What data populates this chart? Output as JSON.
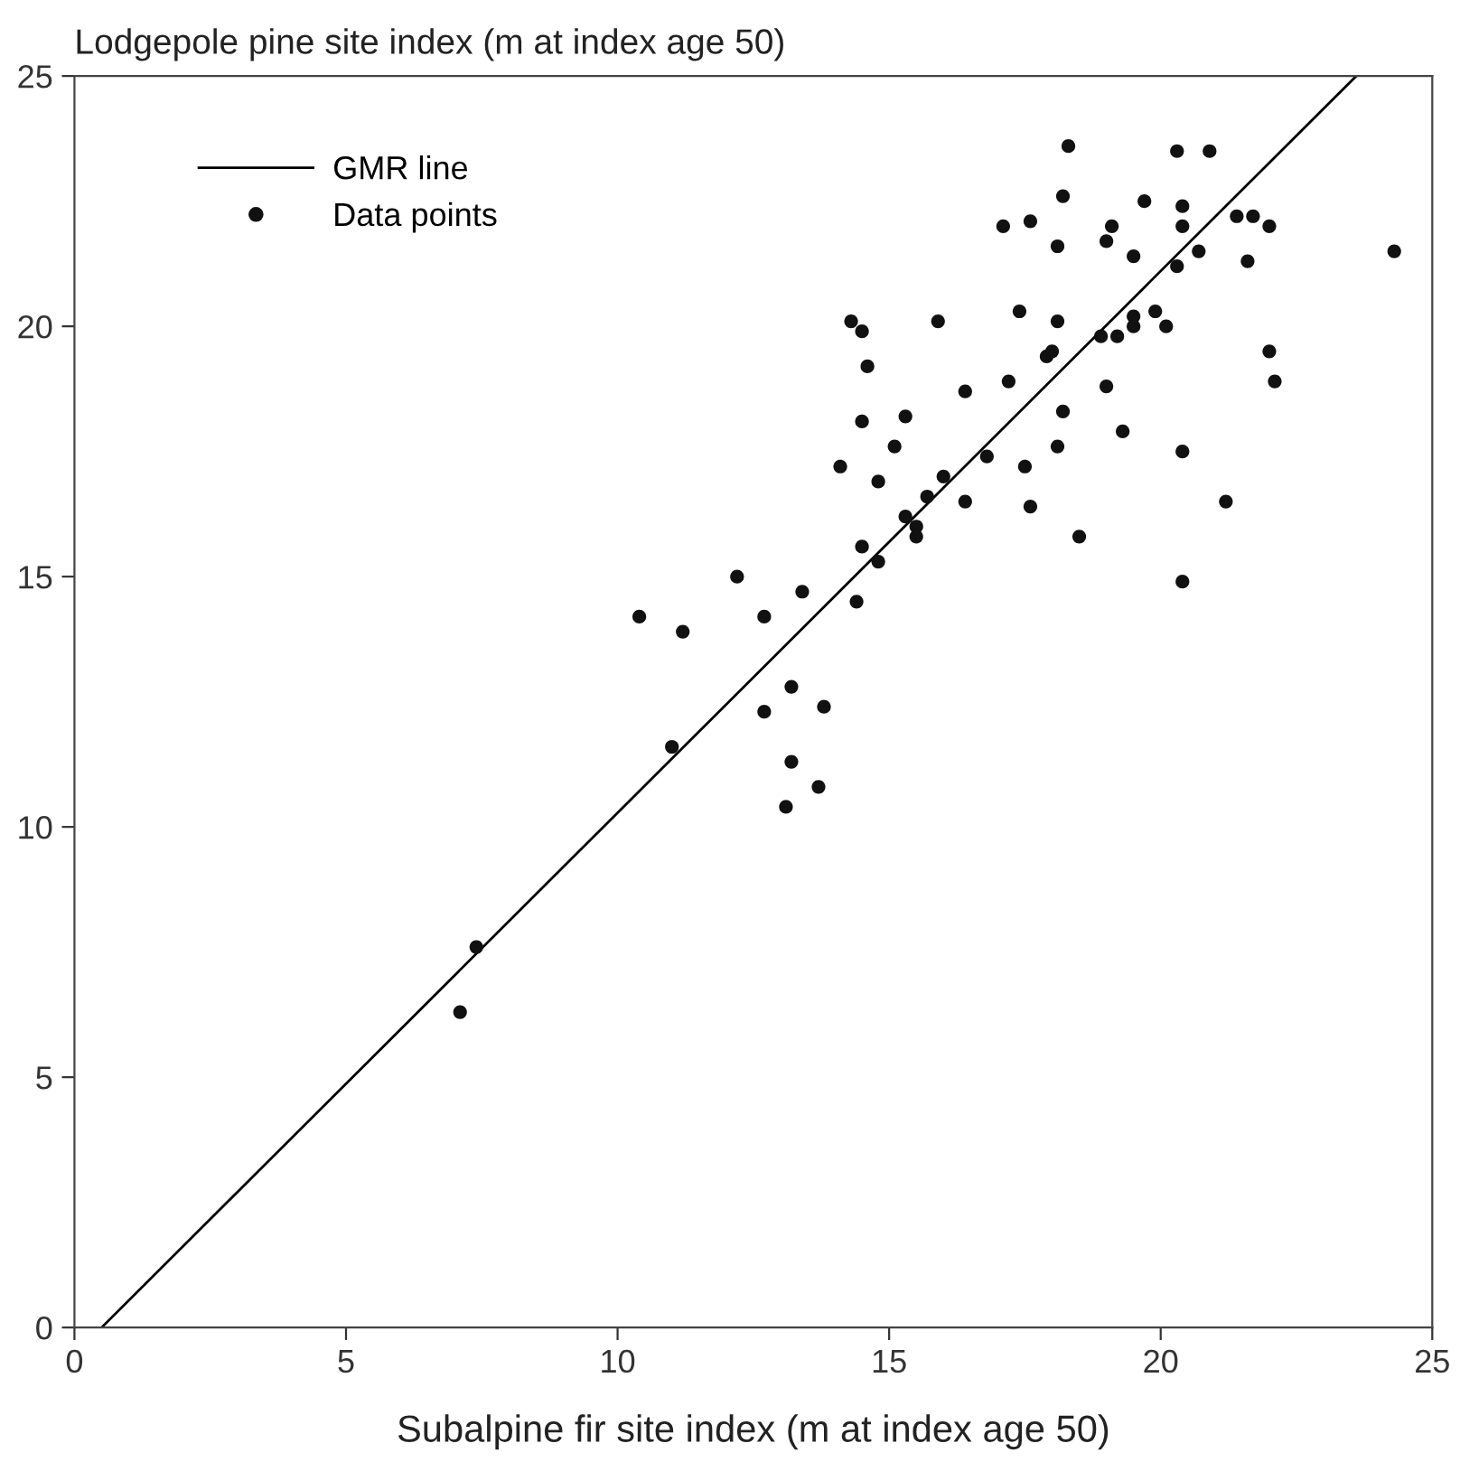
{
  "chart_data": {
    "type": "scatter",
    "ylabel": "Lodgepole pine site index (m at index age 50)",
    "xlabel": "Subalpine fir site index (m at index age 50)",
    "xlim": [
      0,
      25
    ],
    "ylim": [
      0,
      25
    ],
    "xticks": [
      0,
      5,
      10,
      15,
      20,
      25
    ],
    "yticks": [
      0,
      5,
      10,
      15,
      20,
      25
    ],
    "grid": false,
    "legend": "top left",
    "series": [
      {
        "name": "GMR line",
        "type": "line",
        "color": "#000000",
        "marker": "none",
        "line_style": "solid",
        "x": [
          0.5,
          23.6
        ],
        "values": [
          0,
          25
        ]
      },
      {
        "name": "Data points",
        "color": "#111111",
        "marker": "circle",
        "x": [
          7.1,
          7.4,
          10.4,
          11.0,
          11.2,
          12.2,
          12.7,
          12.7,
          13.1,
          13.2,
          13.2,
          13.4,
          13.7,
          13.8,
          14.1,
          14.3,
          14.4,
          14.5,
          14.5,
          14.5,
          14.6,
          14.8,
          14.8,
          15.1,
          15.3,
          15.3,
          15.5,
          15.5,
          15.7,
          15.9,
          16.0,
          16.4,
          16.4,
          16.8,
          17.1,
          17.2,
          17.4,
          17.5,
          17.6,
          17.6,
          17.9,
          18.0,
          18.1,
          18.1,
          18.1,
          18.2,
          18.2,
          18.3,
          18.5,
          18.9,
          19.0,
          19.0,
          19.1,
          19.2,
          19.3,
          19.5,
          19.5,
          19.5,
          19.7,
          19.9,
          20.1,
          20.3,
          20.3,
          20.4,
          20.4,
          20.4,
          20.4,
          20.7,
          20.9,
          21.2,
          21.4,
          21.6,
          21.7,
          22.0,
          22.0,
          22.1,
          24.3
        ],
        "values": [
          6.3,
          7.6,
          14.2,
          11.6,
          13.9,
          15.0,
          14.2,
          12.3,
          10.4,
          12.8,
          11.3,
          14.7,
          10.8,
          12.4,
          17.2,
          20.1,
          14.5,
          19.9,
          18.1,
          15.6,
          19.2,
          16.9,
          15.3,
          17.6,
          18.2,
          16.2,
          16.0,
          15.8,
          16.6,
          20.1,
          17.0,
          18.7,
          16.5,
          17.4,
          22.0,
          18.9,
          20.3,
          17.2,
          22.1,
          16.4,
          19.4,
          19.5,
          21.6,
          20.1,
          17.6,
          22.6,
          18.3,
          23.6,
          15.8,
          19.8,
          21.7,
          18.8,
          22.0,
          19.8,
          17.9,
          21.4,
          20.2,
          20.0,
          22.5,
          20.3,
          20.0,
          23.5,
          21.2,
          22.4,
          22.0,
          17.5,
          14.9,
          21.5,
          23.5,
          16.5,
          22.2,
          21.3,
          22.2,
          22.0,
          19.5,
          18.9,
          21.5
        ]
      }
    ]
  }
}
